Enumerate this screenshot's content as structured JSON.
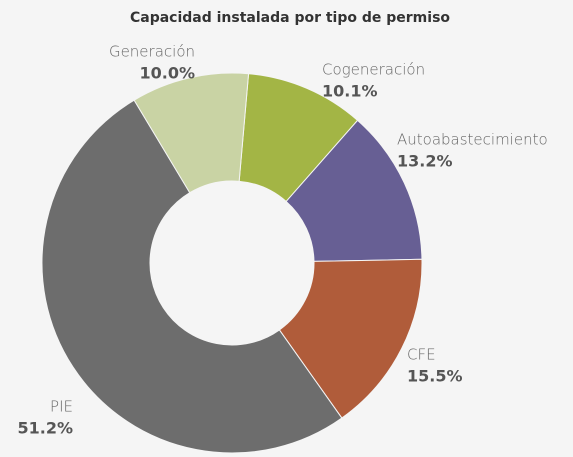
{
  "chart_data": {
    "type": "donut",
    "title": "Capacidad instalada por tipo de permiso",
    "categories": [
      "Cogeneración",
      "Autoabastecimiento",
      "CFE",
      "PIE",
      "Generación"
    ],
    "values": [
      10.1,
      13.2,
      15.5,
      51.2,
      10.0
    ],
    "value_labels": [
      "10.1%",
      "13.2%",
      "15.5%",
      "51.2%",
      "10.0%"
    ],
    "colors": [
      "#a3b545",
      "#675f94",
      "#b05c3a",
      "#6d6d6d",
      "#c9d3a4"
    ]
  }
}
